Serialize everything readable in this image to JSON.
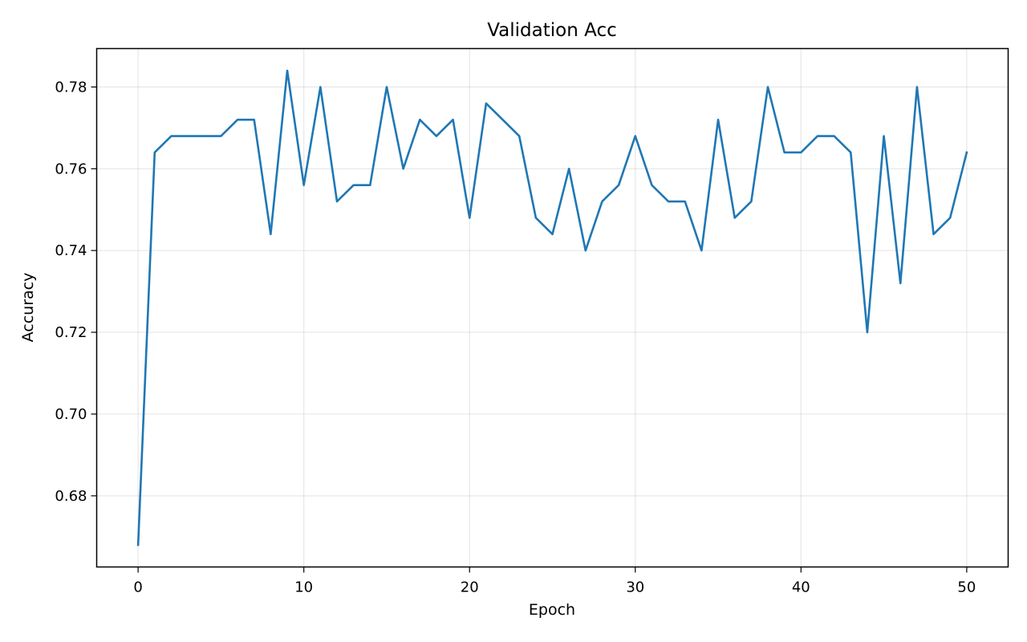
{
  "chart_data": {
    "type": "line",
    "title": "Validation Acc",
    "xlabel": "Epoch",
    "ylabel": "Accuracy",
    "xlim": [
      -2.5,
      52.5
    ],
    "ylim": [
      0.6626,
      0.7894
    ],
    "xticks": [
      0,
      10,
      20,
      30,
      40,
      50
    ],
    "xtick_labels": [
      "0",
      "10",
      "20",
      "30",
      "40",
      "50"
    ],
    "yticks": [
      0.68,
      0.7,
      0.72,
      0.74,
      0.76,
      0.78
    ],
    "ytick_labels": [
      "0.68",
      "0.70",
      "0.72",
      "0.74",
      "0.76",
      "0.78"
    ],
    "grid": true,
    "series": [
      {
        "color": "#1f77b4",
        "x": [
          0,
          1,
          2,
          3,
          4,
          5,
          6,
          7,
          8,
          9,
          10,
          11,
          12,
          13,
          14,
          15,
          16,
          17,
          18,
          19,
          20,
          21,
          22,
          23,
          24,
          25,
          26,
          27,
          28,
          29,
          30,
          31,
          32,
          33,
          34,
          35,
          36,
          37,
          38,
          39,
          40,
          41,
          42,
          43,
          44,
          45,
          46,
          47,
          48,
          49,
          50
        ],
        "values": [
          0.668,
          0.764,
          0.768,
          0.768,
          0.768,
          0.768,
          0.772,
          0.772,
          0.744,
          0.784,
          0.756,
          0.78,
          0.752,
          0.756,
          0.756,
          0.78,
          0.76,
          0.772,
          0.768,
          0.772,
          0.748,
          0.776,
          0.772,
          0.768,
          0.748,
          0.744,
          0.76,
          0.74,
          0.752,
          0.756,
          0.768,
          0.756,
          0.752,
          0.752,
          0.74,
          0.772,
          0.748,
          0.752,
          0.78,
          0.764,
          0.764,
          0.768,
          0.768,
          0.764,
          0.72,
          0.768,
          0.732,
          0.78,
          0.744,
          0.748,
          0.764
        ]
      }
    ]
  }
}
